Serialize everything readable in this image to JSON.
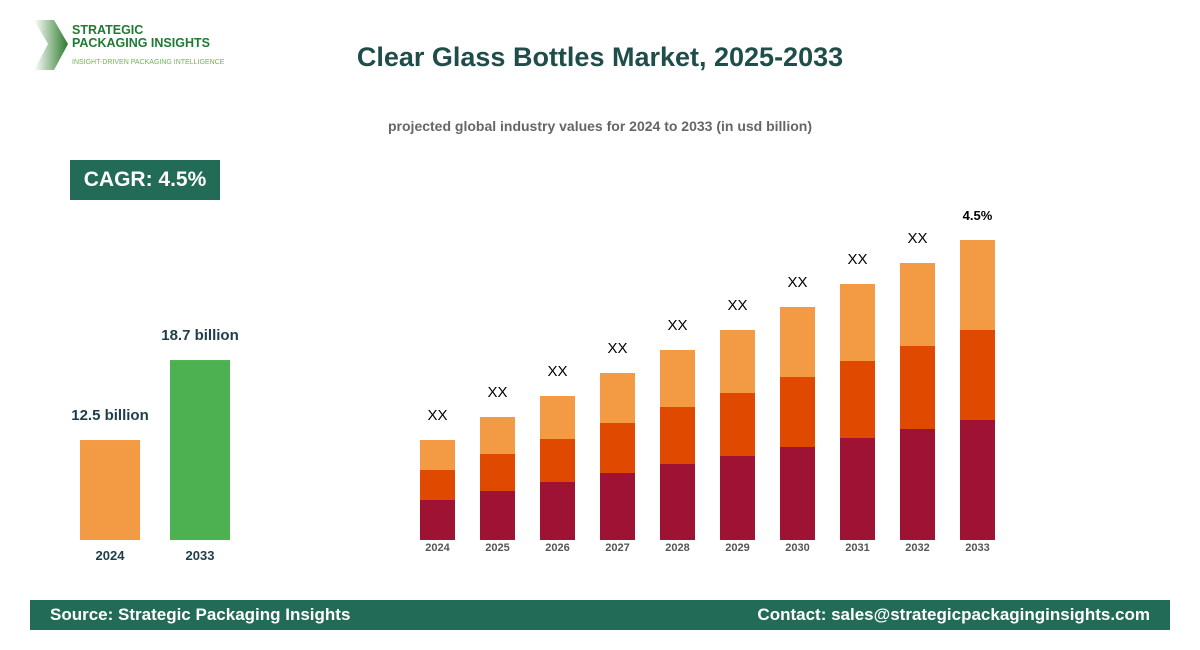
{
  "logo": {
    "line1": "STRATEGIC",
    "line2": "PACKAGING INSIGHTS",
    "tagline": "INSIGHT-DRIVEN PACKAGING INTELLIGENCE"
  },
  "title": "Clear Glass Bottles Market, 2025-2033",
  "subtitle": "projected global industry values for 2024 to 2033 (in usd billion)",
  "cagr": "CAGR: 4.5%",
  "colors": {
    "accent": "#226b57",
    "bar2024": "#f39a45",
    "bar2033": "#4db151",
    "seg_bottom": "#9e1233",
    "seg_mid": "#e04a00",
    "seg_top": "#f39a45"
  },
  "chart_data": [
    {
      "type": "bar",
      "categories": [
        "2024",
        "2033"
      ],
      "values": [
        12.5,
        18.7
      ],
      "data_labels": [
        "12.5 billion",
        "18.7 billion"
      ]
    },
    {
      "type": "bar",
      "stacked": true,
      "categories": [
        "2024",
        "2025",
        "2026",
        "2027",
        "2028",
        "2029",
        "2030",
        "2031",
        "2032",
        "2033"
      ],
      "series": [
        {
          "values": [
            40,
            49,
            58,
            67,
            76,
            84,
            93,
            102,
            111,
            120
          ]
        },
        {
          "values": [
            30,
            37,
            43,
            50,
            57,
            63,
            70,
            77,
            83,
            90
          ]
        },
        {
          "values": [
            30,
            37,
            43,
            50,
            57,
            63,
            70,
            77,
            83,
            90
          ]
        }
      ],
      "data_labels": [
        "XX",
        "XX",
        "XX",
        "XX",
        "XX",
        "XX",
        "XX",
        "XX",
        "XX",
        "4.5%"
      ]
    }
  ],
  "footer": {
    "source": "Source: Strategic Packaging Insights",
    "contact": "Contact: sales@strategicpackaginginsights.com"
  }
}
